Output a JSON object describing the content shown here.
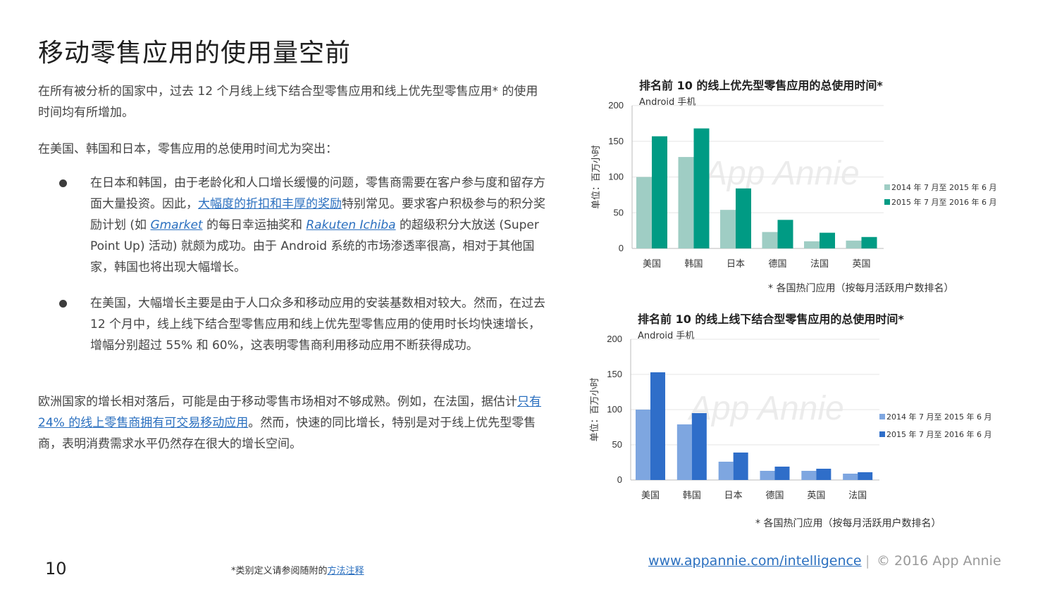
{
  "page": {
    "title": "移动零售应用的使用量空前",
    "p1": "在所有被分析的国家中，过去 12 个月线上线下结合型零售应用和线上优先型零售应用* 的使用时间均有所增加。",
    "p2": "在美国、韩国和日本，零售应用的总使用时间尤为突出：",
    "b1_a": "在日本和韩国，由于老龄化和人口增长缓慢的问题，零售商需要在客户参与度和留存方面大量投资。因此，",
    "b1_link1": "大幅度的折扣和丰厚的奖励",
    "b1_b": "特别常见。要求客户积极参与的积分奖励计划 (如 ",
    "b1_link2": "Gmarket",
    "b1_c": " 的每日幸运抽奖和 ",
    "b1_link3": "Rakuten Ichiba",
    "b1_d": " 的超级积分大放送 (Super Point Up) 活动) 就颇为成功。由于 Android 系统的市场渗透率很高，相对于其他国家，韩国也将出现大幅增长。",
    "b2": "在美国，大幅增长主要是由于人口众多和移动应用的安装基数相对较大。然而，在过去 12 个月中，线上线下结合型零售应用和线上优先型零售应用的使用时长均快速增长，增幅分别超过 55% 和 60%，这表明零售商利用移动应用不断获得成功。",
    "p3_a": "欧洲国家的增长相对落后，可能是由于移动零售市场相对不够成熟。例如，在法国，据估计",
    "p3_link": "只有 24% 的线上零售商拥有可交易移动应用",
    "p3_b": "。然而，快速的同比增长，特别是对于线上优先型零售商，表明消费需求水平仍然存在很大的增长空间。"
  },
  "footer": {
    "page_number": "10",
    "note_a": "*类别定义请参阅随附的",
    "note_link": "方法注释",
    "url": "www.appannie.com/intelligence",
    "separator": "|",
    "copyright": "© 2016 App Annie"
  },
  "chart_data": [
    {
      "type": "bar",
      "title": "排名前 10 的线上优先型零售应用的总使用时间*",
      "subtitle": "Android 手机",
      "ylabel": "单位：百万小时",
      "ylim": [
        0,
        200
      ],
      "yticks": [
        0,
        50,
        100,
        150,
        200
      ],
      "categories": [
        "美国",
        "韩国",
        "日本",
        "德国",
        "法国",
        "英国"
      ],
      "series": [
        {
          "name": "2014 年 7 月至 2015 年 6 月",
          "values": [
            100,
            128,
            54,
            23,
            10,
            11
          ],
          "color": "#9fcdc4"
        },
        {
          "name": "2015 年 7 月至 2016 年 6 月",
          "values": [
            157,
            168,
            84,
            40,
            22,
            16
          ],
          "color": "#009b84"
        }
      ],
      "watermark": "App Annie",
      "footnote": "* 各国热门应用（按每月活跃用户数排名）",
      "grid": true,
      "legend": "right"
    },
    {
      "type": "bar",
      "title": "排名前 10 的线上线下结合型零售应用的总使用时间*",
      "subtitle": "Android 手机",
      "ylabel": "单位：百万小时",
      "ylim": [
        0,
        200
      ],
      "yticks": [
        0,
        50,
        100,
        150,
        200
      ],
      "categories": [
        "美国",
        "韩国",
        "日本",
        "德国",
        "英国",
        "法国"
      ],
      "series": [
        {
          "name": "2014 年 7 月至 2015 年 6 月",
          "values": [
            100,
            79,
            26,
            13,
            13,
            9
          ],
          "color": "#7ea6e0"
        },
        {
          "name": "2015 年 7 月至 2016 年 6 月",
          "values": [
            153,
            95,
            39,
            19,
            16,
            11
          ],
          "color": "#2f6ec9"
        }
      ],
      "watermark": "App Annie",
      "footnote": "* 各国热门应用（按每月活跃用户数排名）",
      "grid": true,
      "legend": "right"
    }
  ]
}
